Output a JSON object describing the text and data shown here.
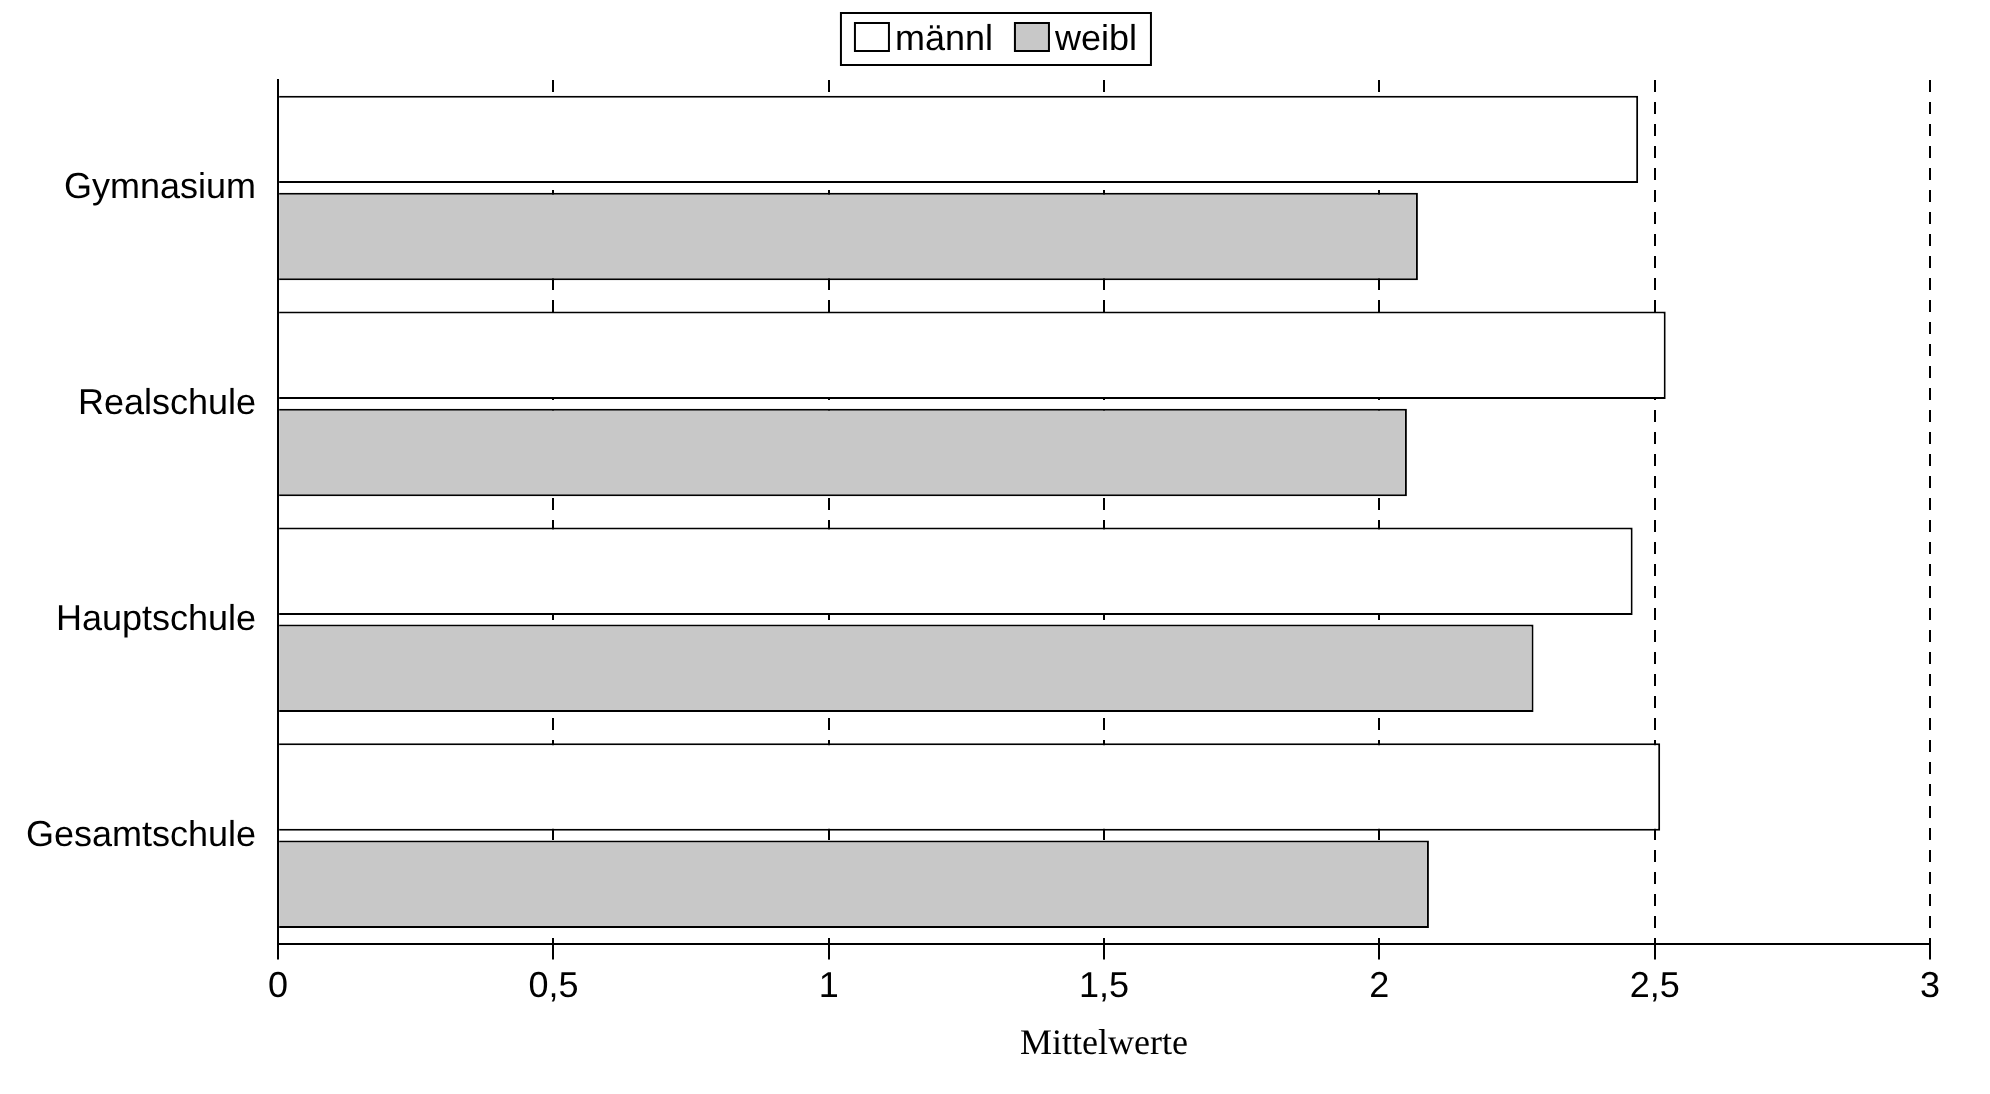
{
  "chart_data": {
    "type": "bar",
    "orientation": "horizontal",
    "categories": [
      "Gymnasium",
      "Realschule",
      "Hauptschule",
      "Gesamtschule"
    ],
    "series": [
      {
        "name": "männl",
        "color": "#ffffff",
        "values": [
          2.47,
          2.52,
          2.46,
          2.51
        ]
      },
      {
        "name": "weibl",
        "color": "#c8c8c8",
        "values": [
          2.07,
          2.05,
          2.28,
          2.09
        ]
      }
    ],
    "xlabel": "Mittelwerte",
    "xlim": [
      0,
      3
    ],
    "xticks": [
      0,
      {
        "value": 0.5,
        "label": "0,5"
      },
      1,
      {
        "value": 1.5,
        "label": "1,5"
      },
      2,
      {
        "value": 2.5,
        "label": "2,5"
      },
      3
    ],
    "grid": "x",
    "legend": "top"
  }
}
